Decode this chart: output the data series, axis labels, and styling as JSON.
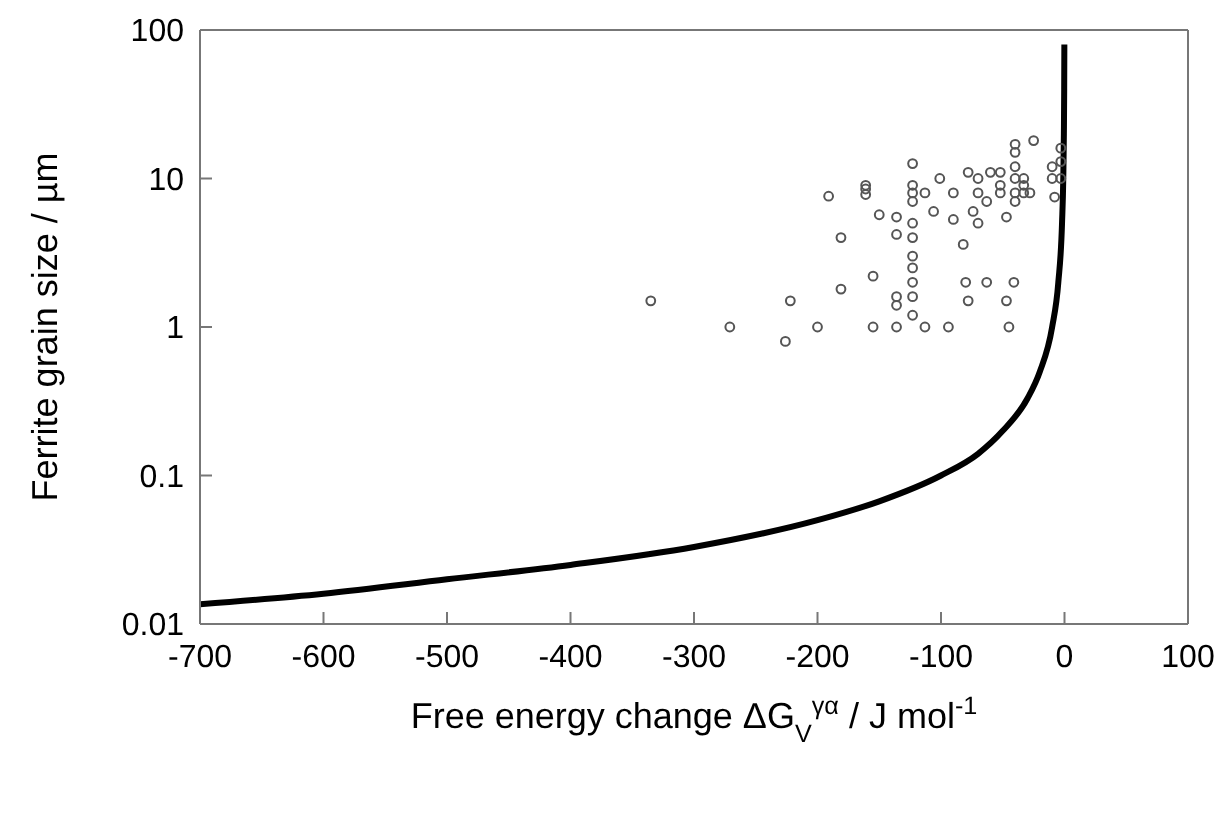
{
  "chart_data": {
    "type": "scatter",
    "xlabel": "Free energy change ΔG$_{V}$$^{γα}$ / J mol$^{-1}$",
    "ylabel": "Ferrite grain size / µm",
    "log": "y",
    "grid": false,
    "xlim": [
      -700,
      100
    ],
    "xticks": [
      -700,
      -600,
      -500,
      -400,
      -300,
      -200,
      -100,
      0,
      100
    ],
    "ylim": [
      0.01,
      100
    ],
    "yticks": [
      0.01,
      0.1,
      1,
      10,
      100
    ],
    "series": [
      {
        "marker": "circle",
        "color": "#555555",
        "x": [
          -335,
          -271,
          -226,
          -222,
          -200,
          -191,
          -181,
          -181,
          -161,
          -161,
          -161,
          -155,
          -155,
          -150,
          -136,
          -136,
          -136,
          -136,
          -136,
          -123,
          -123,
          -123,
          -123,
          -123,
          -123,
          -123,
          -123,
          -123,
          -123,
          -123,
          -113,
          -113,
          -106,
          -101,
          -94,
          -90,
          -90,
          -82,
          -80,
          -78,
          -78,
          -74,
          -70,
          -70,
          -70,
          -63,
          -63,
          -60,
          -52,
          -52,
          -52,
          -47,
          -47,
          -45,
          -41,
          -40,
          -40,
          -40,
          -40,
          -40,
          -40,
          -33,
          -33,
          -33,
          -28,
          -25,
          -10,
          -10,
          -8,
          -3,
          -3,
          -3
        ],
        "values": [
          1.5,
          1.0,
          0.8,
          1.5,
          1.0,
          7.6,
          4.0,
          1.8,
          8.5,
          9,
          7.8,
          1.0,
          2.2,
          5.7,
          1.0,
          5.5,
          4.2,
          1.4,
          1.6,
          12.6,
          9,
          8,
          7,
          5,
          4,
          3,
          2.5,
          2,
          1.6,
          1.2,
          1.0,
          8,
          6,
          10,
          1.0,
          8,
          5.3,
          3.6,
          2,
          11,
          1.5,
          6,
          10,
          8,
          5,
          2,
          7,
          11,
          11,
          9,
          8,
          5.5,
          1.5,
          1.0,
          2,
          17,
          15,
          12,
          10,
          8,
          7,
          10,
          9,
          8,
          8,
          18,
          12,
          10,
          7.5,
          16,
          13,
          10
        ]
      },
      {
        "type": "line",
        "marker": "none",
        "color": "#000000",
        "x": [
          -700,
          -600,
          -500,
          -400,
          -300,
          -200,
          -150,
          -100,
          -70,
          -50,
          -30,
          -20,
          -10,
          -5,
          -2,
          -1,
          -0.5,
          -0.25,
          -0.12
        ],
        "values": [
          0.0136,
          0.016,
          0.02,
          0.025,
          0.033,
          0.05,
          0.067,
          0.1,
          0.14,
          0.2,
          0.33,
          0.5,
          1,
          2,
          5,
          10,
          20,
          40,
          80
        ]
      }
    ]
  }
}
